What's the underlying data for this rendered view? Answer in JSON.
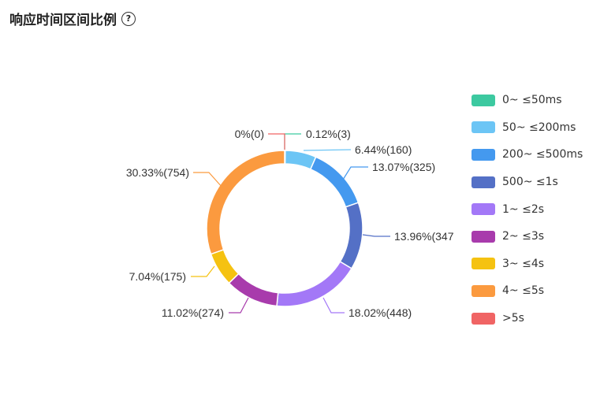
{
  "title": "响应时间区间比例",
  "help_icon": "question-circle-icon",
  "chart_data": {
    "type": "pie",
    "donut": true,
    "legend_position": "right",
    "slices": [
      {
        "name": "0~ ≤50ms",
        "value": 3,
        "percent": "0.12%",
        "label": "0.12%(3)",
        "color": "#3cc9a0"
      },
      {
        "name": "50~ ≤200ms",
        "value": 160,
        "percent": "6.44%",
        "label": "6.44%(160)",
        "color": "#6cc5f5"
      },
      {
        "name": "200~ ≤500ms",
        "value": 325,
        "percent": "13.07%",
        "label": "13.07%(325)",
        "color": "#4499ef"
      },
      {
        "name": "500~ ≤1s",
        "value": 347,
        "percent": "13.96%",
        "label": "13.96%(347",
        "color": "#5470c6"
      },
      {
        "name": "1~ ≤2s",
        "value": 448,
        "percent": "18.02%",
        "label": "18.02%(448)",
        "color": "#a378f7"
      },
      {
        "name": "2~ ≤3s",
        "value": 274,
        "percent": "11.02%",
        "label": "11.02%(274)",
        "color": "#a83bac"
      },
      {
        "name": "3~ ≤4s",
        "value": 175,
        "percent": "7.04%",
        "label": "7.04%(175)",
        "color": "#f5c211"
      },
      {
        "name": "4~ ≤5s",
        "value": 754,
        "percent": "30.33%",
        "label": "30.33%(754)",
        "color": "#fb9a3f"
      },
      {
        "name": ">5s",
        "value": 0,
        "percent": "0%",
        "label": "0%(0)",
        "color": "#f06464"
      }
    ]
  }
}
